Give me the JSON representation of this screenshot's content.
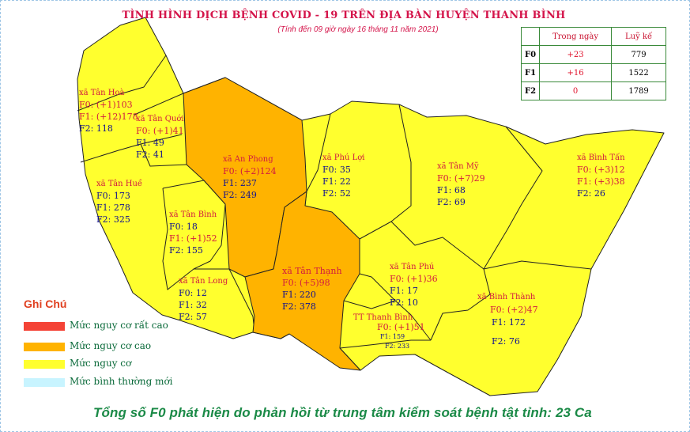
{
  "title": "TÌNH HÌNH DỊCH BỆNH COVID - 19 TRÊN ĐỊA BÀN HUYỆN THANH BÌNH",
  "subtitle": "(Tính đến 09 giờ ngày 16 tháng 11 năm 2021)",
  "colors": {
    "very_high": "#f44336",
    "high": "#ffb300",
    "risk": "#ffff2e",
    "normal": "#c8f4ff",
    "border": "#222222"
  },
  "stats": {
    "headers": [
      "Trong ngày",
      "Luỹ kế"
    ],
    "rows": [
      {
        "label": "F0",
        "today": "+23",
        "cumulative": "779"
      },
      {
        "label": "F1",
        "today": "+16",
        "cumulative": "1522"
      },
      {
        "label": "F2",
        "today": "0",
        "cumulative": "1789"
      }
    ]
  },
  "communes": [
    {
      "name": "xã Tân Hoà",
      "f0": "F0: (+1)103",
      "f1": "F1: (+12)178",
      "f2": "F2: 118",
      "level": "risk"
    },
    {
      "name": "xã Tân Quới",
      "f0": "F0: (+1)41",
      "f1": "F1: 49",
      "f2": "F2: 41",
      "level": "risk"
    },
    {
      "name": "xã An Phong",
      "f0": "F0: (+2)124",
      "f1": "F1: 237",
      "f2": "F2: 249",
      "level": "high"
    },
    {
      "name": "xã Phú Lợi",
      "f0": "F0: 35",
      "f1": "F1: 22",
      "f2": "F2: 52",
      "level": "risk"
    },
    {
      "name": "xã Tân Mỹ",
      "f0": "F0: (+7)29",
      "f1": "F1: 68",
      "f2": "F2: 69",
      "level": "risk"
    },
    {
      "name": "xã Bình Tấn",
      "f0": "F0: (+3)12",
      "f1": "F1: (+3)38",
      "f2": "F2: 26",
      "level": "risk"
    },
    {
      "name": "xã Tân Huề",
      "f0": "F0: 173",
      "f1": "F1: 278",
      "f2": "F2: 325",
      "level": "risk"
    },
    {
      "name": "xã Tân Bình",
      "f0": "F0: 18",
      "f1": "F1: (+1)52",
      "f2": "F2: 155",
      "level": "risk"
    },
    {
      "name": "xã Tân Thạnh",
      "f0": "F0: (+5)98",
      "f1": "F1: 220",
      "f2": "F2: 378",
      "level": "high"
    },
    {
      "name": "xã Tân Phú",
      "f0": "F0: (+1)36",
      "f1": "F1: 17",
      "f2": "F2: 10",
      "level": "risk"
    },
    {
      "name": "xã Tân Long",
      "f0": "F0: 12",
      "f1": "F1: 32",
      "f2": "F2: 57",
      "level": "risk"
    },
    {
      "name": "TT Thanh Bình",
      "f0": "F0: (+1)51",
      "f1": "F1: 159",
      "f2": "F2: 233",
      "level": "risk"
    },
    {
      "name": "xã Bình Thành",
      "f0": "F0: (+2)47",
      "f1": "F1: 172",
      "f2": "F2: 76",
      "level": "risk"
    }
  ],
  "legend": {
    "title": "Ghi Chú",
    "items": [
      {
        "label": "Mức  nguy cơ rất cao",
        "color": "#f44336"
      },
      {
        "label": "Mức  nguy cơ cao",
        "color": "#ffb300"
      },
      {
        "label": "Mức  nguy cơ",
        "color": "#ffff2e"
      },
      {
        "label": "Mức  bình thường mới",
        "color": "#c8f4ff"
      }
    ]
  },
  "footer": "Tổng số F0 phát hiện do phản hồi từ trung tâm kiểm soát bệnh tật tỉnh: 23 Ca"
}
